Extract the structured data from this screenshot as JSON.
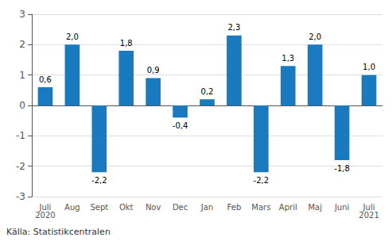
{
  "chart_data": {
    "type": "bar",
    "categories": [
      "Juli\n2020",
      "Aug",
      "Sept",
      "Okt",
      "Nov",
      "Dec",
      "Jan",
      "Feb",
      "Mars",
      "April",
      "Maj",
      "Juni",
      "Juli\n2021"
    ],
    "values": [
      0.6,
      2.0,
      -2.2,
      1.8,
      0.9,
      -0.4,
      0.2,
      2.3,
      -2.2,
      1.3,
      2.0,
      -1.8,
      1.0
    ],
    "value_labels": [
      "0,6",
      "2,0",
      "-2,2",
      "1,8",
      "0,9",
      "-0,4",
      "0,2",
      "2,3",
      "-2,2",
      "1,3",
      "2,0",
      "-1,8",
      "1,0"
    ],
    "data_labels": true,
    "color": "#1a7abf",
    "ylim": [
      -3,
      3
    ],
    "yticks": [
      -3,
      -2,
      -1,
      0,
      1,
      2,
      3
    ],
    "grid": true,
    "annotation": "Källa: Statistikcentralen"
  }
}
